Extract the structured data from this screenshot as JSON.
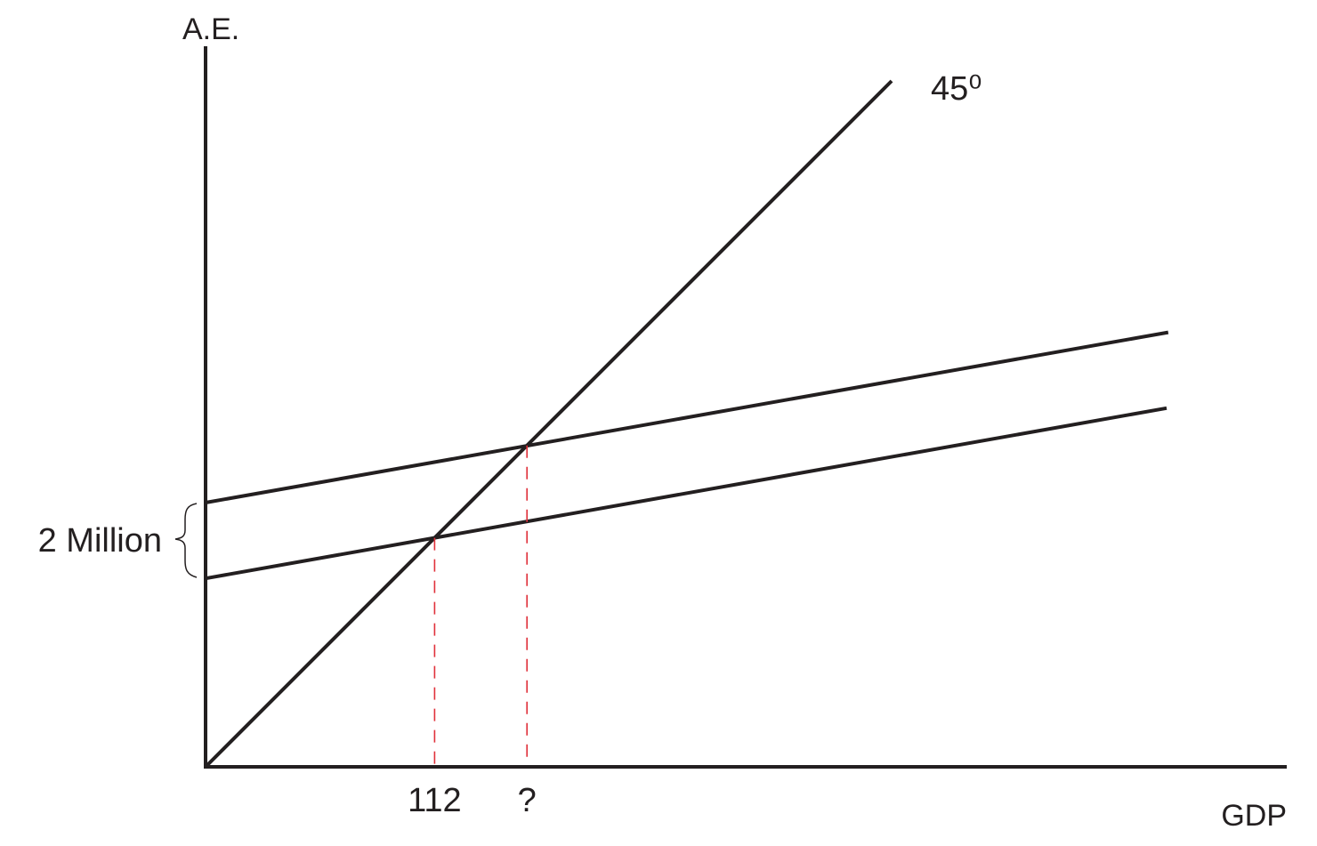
{
  "chart_data": {
    "type": "line",
    "title": "",
    "xlabel": "GDP",
    "ylabel": "A.E.",
    "colors": {
      "line": "#231f20",
      "guide": "#e0303a"
    },
    "series": [
      {
        "id": "line-45",
        "name": "45⁰",
        "x": [
          0,
          128.5
        ],
        "y": [
          0,
          128.5
        ]
      },
      {
        "id": "ae-upper",
        "name": "",
        "x": [
          0,
          180.3
        ],
        "y": [
          49.5,
          81.4
        ]
      },
      {
        "id": "ae-lower",
        "name": "",
        "x": [
          0,
          180.0
        ],
        "y": [
          35.3,
          67.2
        ]
      }
    ],
    "guides": [
      {
        "id": "guide-112",
        "x": 42.9,
        "y_top": 42.9,
        "tick_label": "112"
      },
      {
        "id": "guide-question",
        "x": 60.2,
        "y_top": 60.2,
        "tick_label": "?"
      }
    ],
    "annotations": {
      "angle_label": "45⁰",
      "shift_label": "2 Million"
    }
  }
}
